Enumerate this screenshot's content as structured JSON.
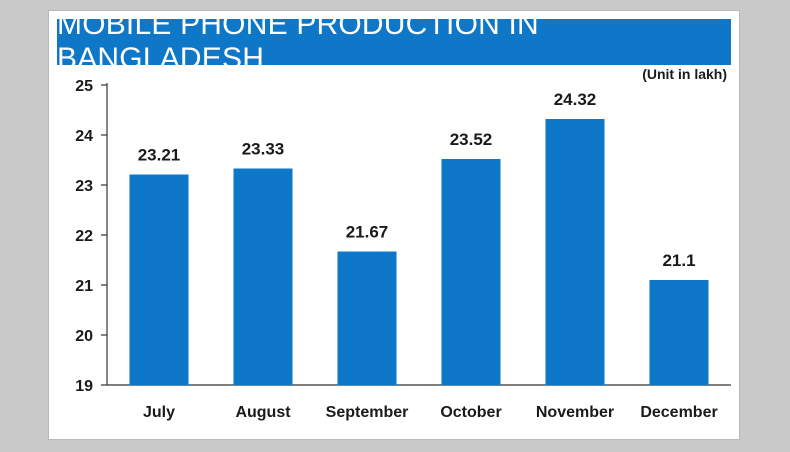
{
  "chart_data": {
    "type": "bar",
    "title": "MOBILE PHONE PRODUCTION IN BANGLADESH",
    "unit_note": "(Unit in lakh)",
    "categories": [
      "July",
      "August",
      "September",
      "October",
      "November",
      "December"
    ],
    "values": [
      23.21,
      23.33,
      21.67,
      23.52,
      24.32,
      21.1
    ],
    "data_labels": [
      "23.21",
      "23.33",
      "21.67",
      "23.52",
      "24.32",
      "21.1"
    ],
    "y_ticks": [
      "19",
      "20",
      "21",
      "22",
      "23",
      "24",
      "25"
    ],
    "ylim": [
      19,
      25
    ],
    "grid": false,
    "legend": "none",
    "bar_color": "#0f77c8",
    "title_bg_color": "#0f77c8"
  }
}
